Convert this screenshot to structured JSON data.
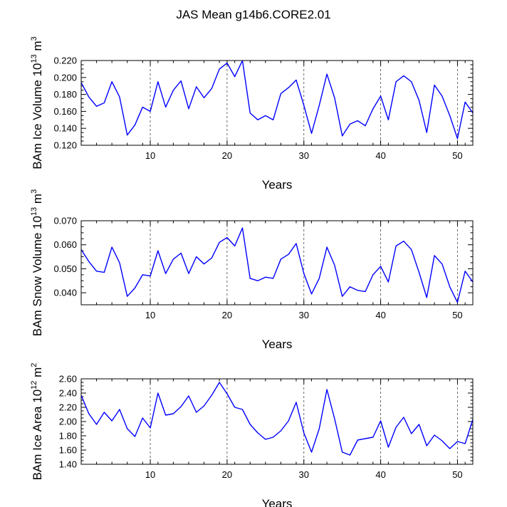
{
  "chart_data": {
    "title": "JAS Mean g14b6.CORE2.01",
    "type": "line",
    "panels": [
      {
        "type": "line",
        "ylabel_parts": [
          "BAm Ice Volume 10",
          "13",
          " m",
          "3"
        ],
        "xlabel": "Years",
        "xlim": [
          1,
          52
        ],
        "ylim": [
          0.12,
          0.22
        ],
        "xticks": [
          10,
          20,
          30,
          40,
          50
        ],
        "yticks": [
          0.12,
          0.14,
          0.16,
          0.18,
          0.2,
          0.22
        ],
        "ytick_labels": [
          "0.120",
          "0.140",
          "0.160",
          "0.180",
          "0.200",
          "0.220"
        ],
        "grid_x": [
          10,
          20,
          30,
          40,
          50
        ],
        "series": [
          {
            "name": "BAm Ice Volume",
            "color": "#0000ff",
            "values": [
              0.194,
              0.177,
              0.166,
              0.17,
              0.195,
              0.177,
              0.132,
              0.144,
              0.165,
              0.16,
              0.195,
              0.165,
              0.185,
              0.196,
              0.163,
              0.189,
              0.176,
              0.187,
              0.21,
              0.217,
              0.201,
              0.22,
              0.158,
              0.15,
              0.155,
              0.15,
              0.181,
              0.188,
              0.197,
              0.167,
              0.134,
              0.167,
              0.204,
              0.176,
              0.131,
              0.145,
              0.149,
              0.143,
              0.163,
              0.178,
              0.15,
              0.195,
              0.202,
              0.195,
              0.173,
              0.135,
              0.191,
              0.178,
              0.155,
              0.128,
              0.171,
              0.158
            ]
          }
        ]
      },
      {
        "type": "line",
        "ylabel_parts": [
          "BAm Snow Volume 10",
          "13",
          " m",
          "3"
        ],
        "xlabel": "Years",
        "xlim": [
          1,
          52
        ],
        "ylim": [
          0.035,
          0.07
        ],
        "xticks": [
          10,
          20,
          30,
          40,
          50
        ],
        "yticks": [
          0.04,
          0.05,
          0.06,
          0.07
        ],
        "ytick_labels": [
          "0.040",
          "0.050",
          "0.060",
          "0.070"
        ],
        "grid_x": [
          10,
          20,
          30,
          40,
          50
        ],
        "series": [
          {
            "name": "BAm Snow Volume",
            "color": "#0000ff",
            "values": [
              0.058,
              0.053,
              0.049,
              0.0485,
              0.059,
              0.0525,
              0.0385,
              0.042,
              0.0475,
              0.047,
              0.0575,
              0.048,
              0.054,
              0.0565,
              0.048,
              0.055,
              0.052,
              0.0545,
              0.061,
              0.063,
              0.0595,
              0.067,
              0.046,
              0.045,
              0.0465,
              0.046,
              0.054,
              0.056,
              0.0605,
              0.048,
              0.0395,
              0.046,
              0.059,
              0.0515,
              0.0385,
              0.0425,
              0.041,
              0.0405,
              0.0475,
              0.051,
              0.0445,
              0.0595,
              0.0615,
              0.058,
              0.0485,
              0.038,
              0.0555,
              0.052,
              0.0425,
              0.036,
              0.049,
              0.0445
            ]
          }
        ]
      },
      {
        "type": "line",
        "ylabel_parts": [
          "BAm Ice Area 10",
          "12",
          " m",
          "2"
        ],
        "xlabel": "Years",
        "xlim": [
          1,
          52
        ],
        "ylim": [
          1.4,
          2.6
        ],
        "xticks": [
          10,
          20,
          30,
          40,
          50
        ],
        "yticks": [
          1.4,
          1.6,
          1.8,
          2.0,
          2.2,
          2.4,
          2.6
        ],
        "ytick_labels": [
          "1.40",
          "1.60",
          "1.80",
          "2.00",
          "2.20",
          "2.40",
          "2.60"
        ],
        "grid_x": [
          10,
          20,
          30,
          40,
          50
        ],
        "series": [
          {
            "name": "BAm Ice Area",
            "color": "#0000ff",
            "values": [
              2.37,
              2.11,
              1.96,
              2.13,
              2.01,
              2.17,
              1.9,
              1.79,
              2.05,
              1.91,
              2.4,
              2.09,
              2.11,
              2.21,
              2.36,
              2.13,
              2.22,
              2.37,
              2.55,
              2.39,
              2.2,
              2.17,
              1.96,
              1.84,
              1.75,
              1.78,
              1.87,
              2.01,
              2.27,
              1.84,
              1.57,
              1.9,
              2.45,
              2.04,
              1.57,
              1.53,
              1.74,
              1.76,
              1.78,
              2.01,
              1.64,
              1.92,
              2.06,
              1.83,
              1.96,
              1.66,
              1.81,
              1.73,
              1.62,
              1.72,
              1.69,
              2.03
            ]
          }
        ]
      }
    ]
  }
}
